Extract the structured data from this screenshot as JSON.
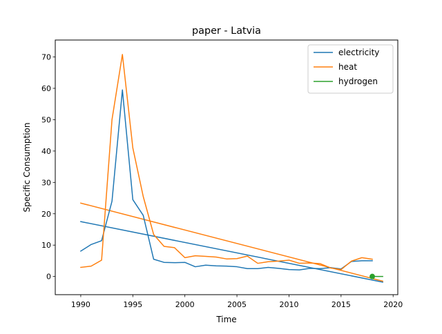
{
  "chart_data": {
    "type": "line",
    "title": "paper - Latvia",
    "xlabel": "Time",
    "ylabel": "Specific Consumption",
    "xlim": [
      1987.55,
      2020.45
    ],
    "ylim": [
      -5.8,
      75.4
    ],
    "xticks": [
      1990,
      1995,
      2000,
      2005,
      2010,
      2015,
      2020
    ],
    "yticks": [
      0,
      10,
      20,
      30,
      40,
      50,
      60,
      70
    ],
    "grid": false,
    "legend_position": "top-right",
    "series": [
      {
        "name": "electricity",
        "color": "#1f77b4",
        "x": [
          1990,
          1991,
          1992,
          1993,
          1994,
          1995,
          1996,
          1997,
          1998,
          1999,
          2000,
          2001,
          2002,
          2003,
          2004,
          2005,
          2006,
          2007,
          2008,
          2009,
          2010,
          2011,
          2012,
          2013,
          2014,
          2015,
          2016,
          2017,
          2018
        ],
        "y": [
          8.1,
          10.2,
          11.4,
          24.0,
          59.5,
          24.5,
          19.5,
          5.5,
          4.5,
          4.4,
          4.5,
          3.1,
          3.6,
          3.4,
          3.3,
          3.1,
          2.5,
          2.5,
          2.9,
          2.6,
          2.2,
          2.1,
          2.6,
          2.5,
          2.8,
          2.4,
          4.8,
          5.0,
          5.0
        ]
      },
      {
        "name": "heat",
        "color": "#ff7f0e",
        "x": [
          1990,
          1991,
          1992,
          1993,
          1994,
          1995,
          1996,
          1997,
          1998,
          1999,
          2000,
          2001,
          2002,
          2003,
          2004,
          2005,
          2006,
          2007,
          2008,
          2009,
          2010,
          2011,
          2012,
          2013,
          2014,
          2015,
          2016,
          2017,
          2018
        ],
        "y": [
          2.9,
          3.3,
          5.2,
          50.0,
          70.8,
          41.0,
          25.5,
          13.4,
          9.6,
          9.2,
          6.0,
          6.6,
          6.4,
          6.2,
          5.6,
          5.7,
          6.5,
          4.2,
          4.7,
          4.9,
          5.2,
          4.2,
          4.3,
          4.1,
          2.7,
          2.2,
          4.9,
          6.0,
          5.5
        ]
      },
      {
        "name": "hydrogen",
        "color": "#2ca02c",
        "x": [
          2018
        ],
        "y": [
          0.0
        ]
      }
    ],
    "trendlines": [
      {
        "series": "electricity",
        "color": "#1f77b4",
        "x": [
          1990,
          2019
        ],
        "y": [
          17.5,
          -1.8
        ]
      },
      {
        "series": "heat",
        "color": "#ff7f0e",
        "x": [
          1990,
          2019
        ],
        "y": [
          23.4,
          -1.5
        ]
      },
      {
        "series": "hydrogen",
        "color": "#2ca02c",
        "x": [
          2018,
          2019
        ],
        "y": [
          0.0,
          0.0
        ]
      }
    ]
  }
}
